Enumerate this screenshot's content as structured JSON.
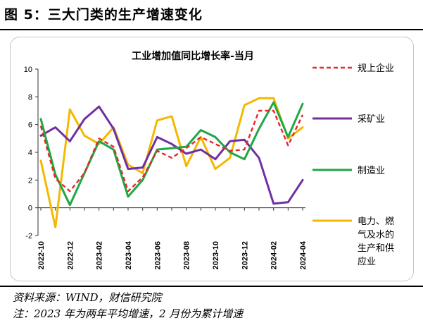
{
  "figure": {
    "title": "图 5：三大门类的生产增速变化",
    "source": "资料来源：WIND，财信研究院",
    "note": "注：2023 年为两年平均增速，2 月份为累计增速"
  },
  "chart_data": {
    "type": "line",
    "title": "工业增加值同比增长率-当月",
    "xlabel": "",
    "ylabel": "",
    "ylim": [
      -2,
      10
    ],
    "yticks": [
      "-2",
      "0",
      "2",
      "4",
      "6",
      "8",
      "10"
    ],
    "grid": false,
    "legend_position": "right",
    "x": [
      "2022-10",
      "2022-11",
      "2022-12",
      "2023-01",
      "2023-02",
      "2023-03",
      "2023-04",
      "2023-05",
      "2023-06",
      "2023-07",
      "2023-08",
      "2023-09",
      "2023-10",
      "2023-11",
      "2023-12",
      "2024-01",
      "2024-02",
      "2024-03",
      "2024-04"
    ],
    "xtick_labels": [
      "2022-10",
      "2022-12",
      "2023-02",
      "2023-04",
      "2023-06",
      "2023-08",
      "2023-10",
      "2023-12",
      "2024-02",
      "2024-04"
    ],
    "series": [
      {
        "name": "规上企业",
        "color": "#e8262b",
        "style": "dashed",
        "values": [
          5.9,
          2.1,
          1.2,
          2.5,
          5.0,
          4.4,
          1.2,
          2.2,
          4.1,
          3.6,
          4.3,
          5.1,
          4.6,
          4.1,
          4.2,
          7.0,
          7.0,
          4.5,
          6.7
        ]
      },
      {
        "name": "采矿业",
        "color": "#7030a0",
        "style": "solid",
        "values": [
          5.2,
          5.8,
          4.8,
          6.4,
          7.3,
          5.7,
          2.8,
          2.9,
          5.1,
          4.6,
          3.9,
          4.2,
          3.5,
          4.8,
          4.9,
          3.6,
          0.3,
          0.4,
          2.0
        ]
      },
      {
        "name": "制造业",
        "color": "#1ea845",
        "style": "solid",
        "values": [
          6.4,
          2.4,
          0.2,
          2.5,
          4.8,
          4.2,
          0.8,
          2.0,
          4.2,
          4.3,
          4.4,
          5.6,
          5.1,
          4.0,
          3.5,
          5.7,
          7.6,
          5.1,
          7.5
        ]
      },
      {
        "name": "电力、燃气及水的生产和供应业",
        "color": "#f5b800",
        "style": "solid",
        "values": [
          3.4,
          -1.4,
          7.1,
          5.2,
          4.6,
          5.8,
          3.1,
          2.5,
          6.3,
          6.6,
          3.0,
          5.1,
          2.8,
          3.6,
          7.4,
          7.9,
          7.9,
          5.0,
          5.8
        ]
      }
    ]
  }
}
